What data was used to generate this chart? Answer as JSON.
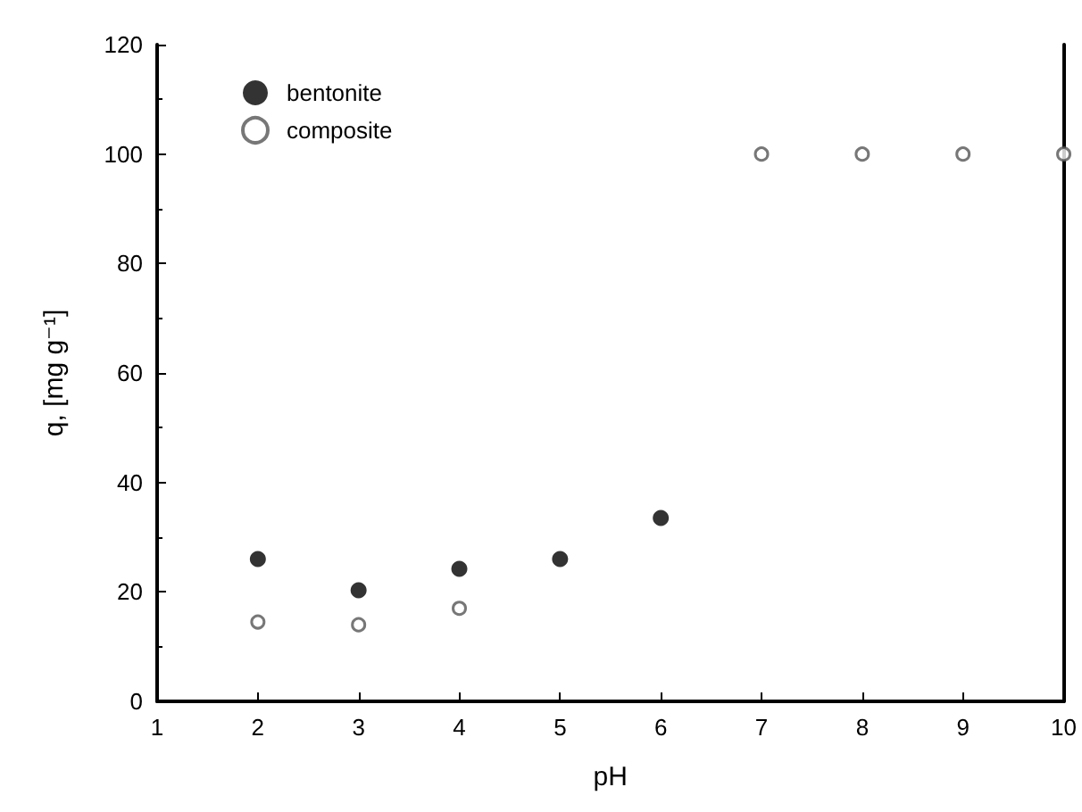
{
  "chart_data": {
    "type": "scatter",
    "xlabel": "pH",
    "ylabel": "q, [mg g⁻¹]",
    "x": [
      2,
      3,
      4,
      5,
      6,
      7,
      8,
      9,
      10
    ],
    "series": [
      {
        "name": "bentonite",
        "color": "#000000",
        "marker": "circle",
        "values": [
          26,
          20.3,
          24.2,
          26,
          33.5,
          null,
          null,
          null,
          null
        ]
      },
      {
        "name": "composite",
        "color": "#555555",
        "marker": "circle",
        "values": [
          14.5,
          14,
          17,
          null,
          null,
          100,
          100,
          100,
          100
        ]
      }
    ],
    "xlim": [
      1,
      10
    ],
    "xticks": [
      1,
      2,
      3,
      4,
      5,
      6,
      7,
      8,
      9,
      10
    ],
    "ylim": [
      0,
      120
    ],
    "yticks": [
      0,
      20,
      40,
      60,
      80,
      100,
      120
    ],
    "grid": false,
    "legend": "top left"
  }
}
